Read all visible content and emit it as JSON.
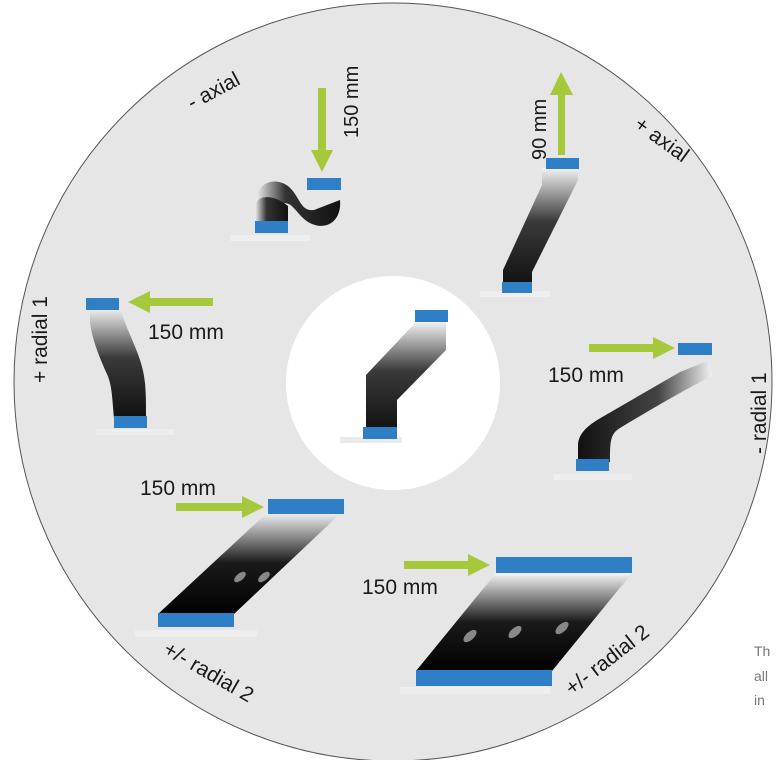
{
  "labels": {
    "minus_axial": "- axial",
    "plus_axial": "+ axial",
    "plus_radial_1": "+ radial 1",
    "minus_radial_1": "- radial 1",
    "pm_radial_2_left": "+/- radial 2",
    "pm_radial_2_right": "+/- radial 2"
  },
  "dimensions": {
    "minus_axial": "150 mm",
    "plus_axial": "90 mm",
    "plus_radial_1": "150 mm",
    "minus_radial_1": "150 mm",
    "pm_radial_2_left": "150 mm",
    "pm_radial_2_right": "150 mm"
  },
  "side_text": [
    "Th",
    "all",
    "in"
  ],
  "colors": {
    "disc": "#e6e6e6",
    "center": "#ffffff",
    "arrow": "#a8c83c",
    "connector": "#2f7fc6",
    "cable_dark": "#111111"
  }
}
